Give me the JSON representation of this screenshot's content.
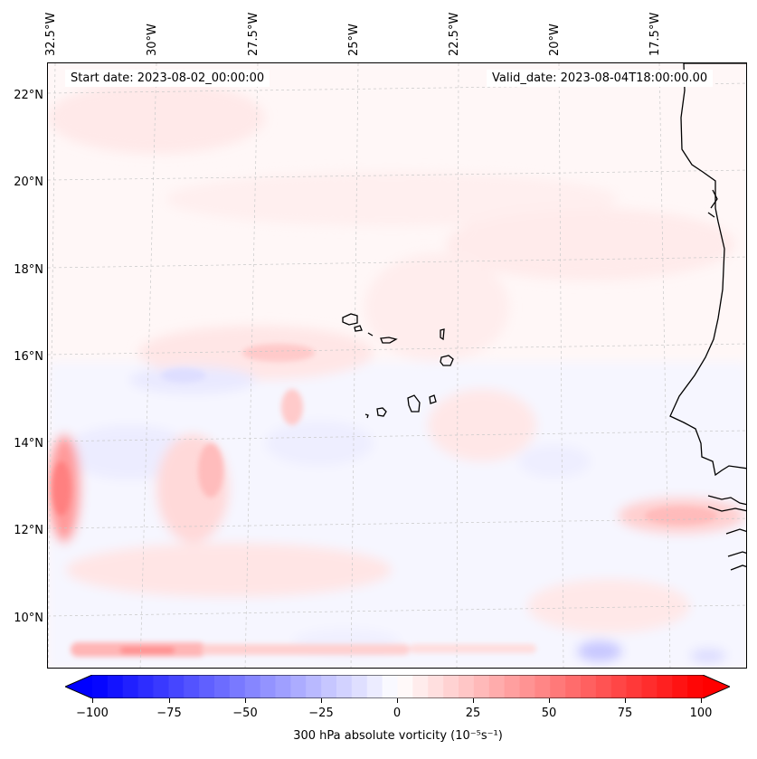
{
  "map": {
    "lon_labels": [
      "32.5°W",
      "30°W",
      "27.5°W",
      "25°W",
      "22.5°W",
      "20°W",
      "17.5°W"
    ],
    "lat_labels": [
      "22°N",
      "20°N",
      "18°N",
      "16°N",
      "14°N",
      "12°N",
      "10°N"
    ],
    "start_date": "Start date: 2023-08-02_00:00:00",
    "valid_date": "Valid_date: 2023-08-04T18:00:00.00",
    "colors": {
      "positive": "#ff0000",
      "negative": "#0000ff",
      "coast": "#000000"
    }
  },
  "colorbar": {
    "ticks": [
      "−100",
      "−75",
      "−50",
      "−25",
      "0",
      "25",
      "50",
      "75",
      "100"
    ],
    "title": "300 hPa absolute vorticity (10$^{-5}$s$^{-1}$)",
    "title_display": "300 hPa absolute vorticity (10⁻⁵s⁻¹)",
    "range": [
      -100,
      100
    ],
    "extend": "both"
  }
}
